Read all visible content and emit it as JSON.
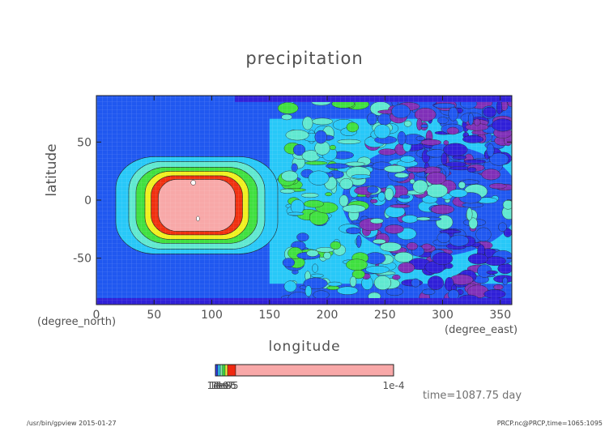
{
  "chart_data": {
    "type": "heatmap",
    "title": "precipitation",
    "xlabel": "longitude",
    "ylabel": "latitude",
    "x_unit": "(degree_east)",
    "y_unit": "(degree_north)",
    "xlim": [
      0,
      360
    ],
    "ylim": [
      -90,
      90
    ],
    "x_ticks": [
      "0",
      "50",
      "100",
      "150",
      "200",
      "250",
      "300",
      "350"
    ],
    "x_tick_values": [
      0,
      50,
      100,
      150,
      200,
      250,
      300,
      350
    ],
    "y_ticks": [
      "50",
      "0",
      "-50"
    ],
    "y_tick_values": [
      50,
      0,
      -50
    ],
    "time_label": "time=1087.75 day",
    "colorbar": {
      "labels": [
        "1e-9",
        "1e-8",
        "1e-7",
        "1e-6",
        "1e-5",
        "1e-4"
      ],
      "colors": [
        "#3040e8",
        "#30c8f0",
        "#80f0a0",
        "#40e840",
        "#f0f040",
        "#f02810",
        "#f8a8a8"
      ]
    }
  },
  "footer": {
    "left": "/usr/bin/gpview  2015-01-27",
    "right": "PRCP.nc@PRCP,time=1065:1095"
  },
  "colors": {
    "deep": "#3020d8",
    "purple": "#8030b8",
    "blue": "#2058f0",
    "cyan": "#28c8f8",
    "aqua": "#60e8d0",
    "green": "#40e040",
    "yellow": "#f0f020",
    "red": "#f03010",
    "pink": "#f8a8a8"
  }
}
